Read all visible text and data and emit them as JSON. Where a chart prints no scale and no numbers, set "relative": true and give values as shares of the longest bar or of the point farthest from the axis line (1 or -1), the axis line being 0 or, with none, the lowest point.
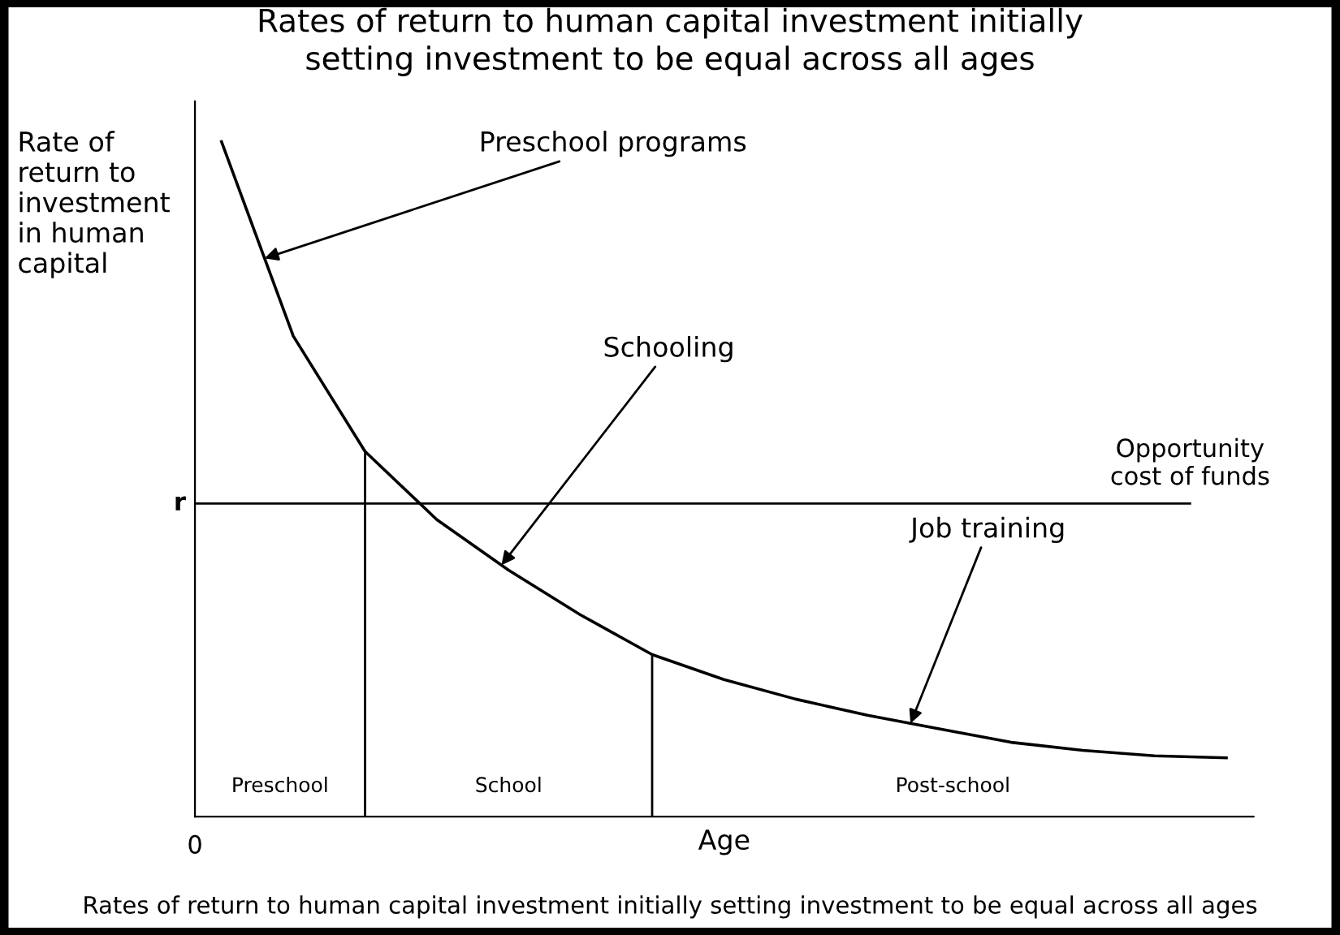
{
  "chart_data": {
    "type": "line",
    "relative": true,
    "title": "Rates of return to human capital investment initially\nsetting investment to be equal across all ages",
    "xlabel": "Age",
    "ylabel": "Rate of\nreturn to\ninvestment\nin human\ncapital",
    "categories": [
      null,
      null,
      null,
      null,
      null,
      null,
      null,
      null,
      null,
      null,
      null,
      null,
      null,
      null,
      null
    ],
    "series": [
      {
        "color": "#000000",
        "values": [
          1.0,
          0.712,
          0.541,
          0.44,
          0.365,
          0.299,
          0.24,
          0.203,
          0.174,
          0.15,
          0.13,
          0.11,
          0.098,
          0.09,
          0.087
        ]
      }
    ],
    "ref_lines": [
      {
        "axis": "y",
        "value": 0.464,
        "label": "r"
      }
    ],
    "annotations": [
      "0",
      "Preschool programs",
      "Schooling",
      "Job training",
      "Opportunity\ncost of funds",
      "Preschool",
      "School",
      "Post-school",
      "Rates of return to human capital investment initially setting investment to be equal across all ages"
    ],
    "legend": false,
    "marker": "none",
    "line_style": "solid"
  }
}
